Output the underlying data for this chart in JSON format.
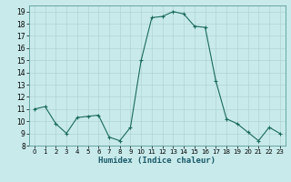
{
  "x": [
    0,
    1,
    2,
    3,
    4,
    5,
    6,
    7,
    8,
    9,
    10,
    11,
    12,
    13,
    14,
    15,
    16,
    17,
    18,
    19,
    20,
    21,
    22,
    23
  ],
  "y": [
    11.0,
    11.2,
    9.8,
    9.0,
    10.3,
    10.4,
    10.5,
    8.7,
    8.4,
    9.5,
    15.0,
    18.5,
    18.6,
    19.0,
    18.8,
    17.8,
    17.7,
    13.3,
    10.2,
    9.8,
    9.1,
    8.4,
    9.5,
    9.0
  ],
  "title": "",
  "xlabel": "Humidex (Indice chaleur)",
  "ylabel": "",
  "xlim": [
    -0.5,
    23.5
  ],
  "ylim": [
    8,
    19.5
  ],
  "yticks": [
    8,
    9,
    10,
    11,
    12,
    13,
    14,
    15,
    16,
    17,
    18,
    19
  ],
  "xticks": [
    0,
    1,
    2,
    3,
    4,
    5,
    6,
    7,
    8,
    9,
    10,
    11,
    12,
    13,
    14,
    15,
    16,
    17,
    18,
    19,
    20,
    21,
    22,
    23
  ],
  "line_color": "#1a6b5a",
  "marker": "+",
  "bg_color": "#c8eaea",
  "grid_color": "#b0d4d4",
  "spine_color": "#5a9a9a"
}
